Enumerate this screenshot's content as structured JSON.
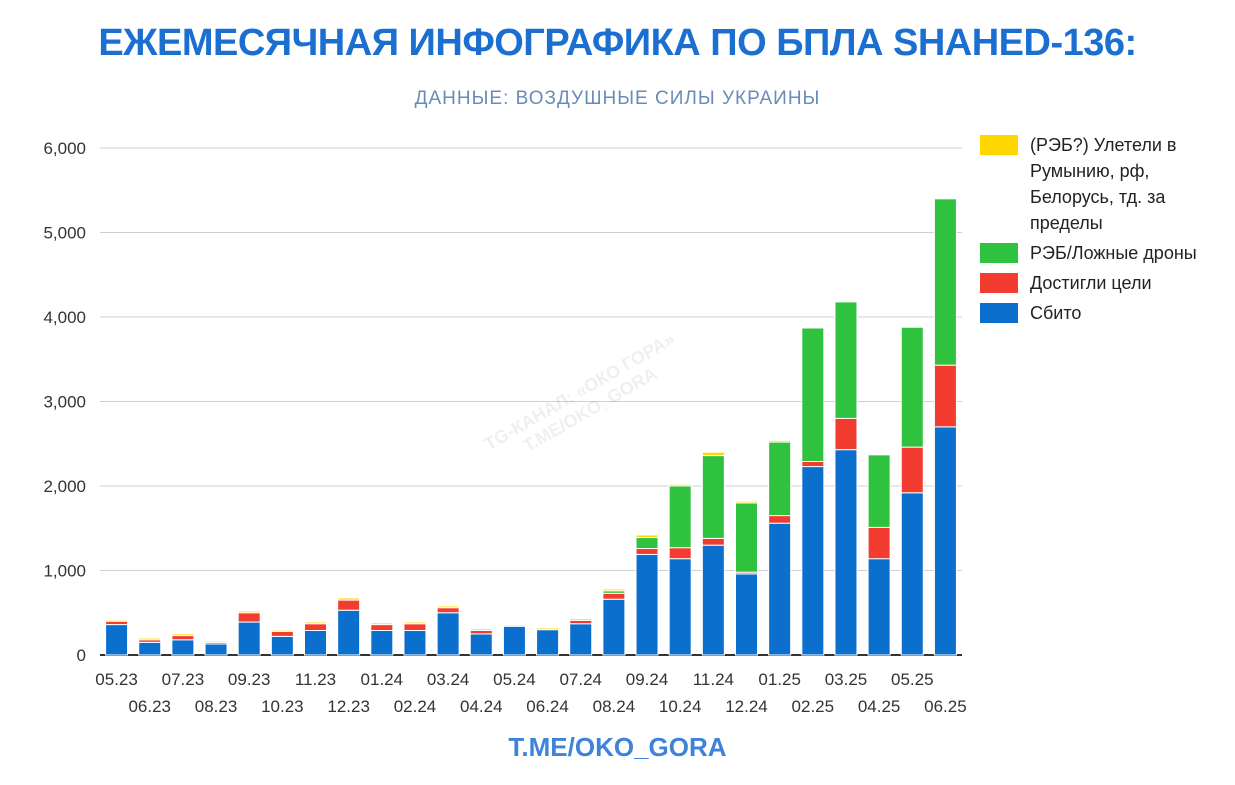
{
  "header": {
    "title": "ЕЖЕМЕСЯЧНАЯ ИНФОГРАФИКА ПО БПЛА SHAHED-136:",
    "subtitle": "ДАННЫЕ: ВОЗДУШНЫЕ СИЛЫ УКРАИНЫ"
  },
  "footer": {
    "link": "T.ME/OKO_GORA"
  },
  "watermark": "TG-КАНАЛ: «ОКО ГОРА» T.ME/OKO_GORA",
  "chart_data": {
    "type": "bar",
    "stacked": true,
    "grid": true,
    "legend_position": "right",
    "ylim": [
      0,
      6000
    ],
    "yticks": [
      "0",
      "1,000",
      "2,000",
      "3,000",
      "4,000",
      "5,000",
      "6,000"
    ],
    "categories": [
      "05.23",
      "06.23",
      "07.23",
      "08.23",
      "09.23",
      "10.23",
      "11.23",
      "12.23",
      "01.24",
      "02.24",
      "03.24",
      "04.24",
      "05.24",
      "06.24",
      "07.24",
      "08.24",
      "09.24",
      "10.24",
      "11.24",
      "12.24",
      "01.25",
      "02.25",
      "03.25",
      "04.25",
      "05.25",
      "06.25"
    ],
    "series": [
      {
        "name": "Сбито",
        "color": "#0b6fce",
        "values": [
          360,
          150,
          180,
          130,
          390,
          220,
          290,
          530,
          290,
          290,
          500,
          250,
          340,
          300,
          370,
          660,
          1190,
          1140,
          1300,
          960,
          1560,
          2230,
          2430,
          1140,
          1920,
          2700
        ]
      },
      {
        "name": "Достигли цели",
        "color": "#f23c30",
        "values": [
          40,
          30,
          50,
          20,
          110,
          60,
          80,
          120,
          70,
          80,
          60,
          40,
          0,
          0,
          40,
          70,
          70,
          130,
          80,
          20,
          90,
          60,
          370,
          370,
          540,
          730
        ]
      },
      {
        "name": "РЭБ/Ложные дроны",
        "color": "#2ec23f",
        "values": [
          0,
          0,
          0,
          0,
          0,
          0,
          0,
          0,
          0,
          0,
          0,
          0,
          0,
          0,
          0,
          30,
          130,
          730,
          980,
          820,
          870,
          1580,
          1380,
          860,
          1420,
          1970
        ]
      },
      {
        "name": "(РЭБ?) Улетели в Румынию, рф, Белорусь, тд. за пределы",
        "color": "#ffd600",
        "values": [
          15,
          20,
          20,
          15,
          20,
          15,
          20,
          25,
          20,
          20,
          20,
          20,
          15,
          20,
          20,
          20,
          30,
          20,
          40,
          20,
          20,
          10,
          10,
          10,
          10,
          10
        ]
      }
    ]
  }
}
